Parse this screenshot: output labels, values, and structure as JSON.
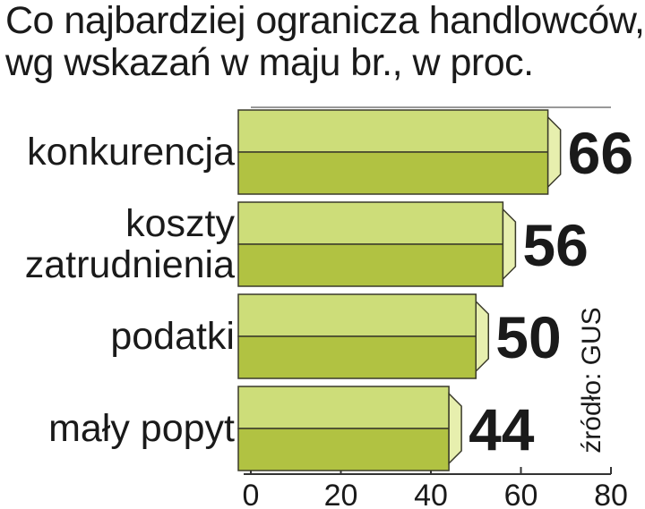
{
  "title_lines": [
    "Co najbardziej ogranicza handlowców,",
    "wg wskazań w maju br., w proc."
  ],
  "source": "źródło: GUS",
  "colors": {
    "bar_top": "#cddd79",
    "bar_bottom": "#b1c242",
    "bar_side": "#e7efae",
    "bar_outline": "#3a3a2a",
    "axis": "#333333",
    "text": "#1a1a1a"
  },
  "chart_data": {
    "type": "bar",
    "orientation": "horizontal",
    "categories": [
      [
        "konkurencja"
      ],
      [
        "koszty",
        "zatrudnienia"
      ],
      [
        "podatki"
      ],
      [
        "mały popyt"
      ]
    ],
    "values": [
      66,
      56,
      50,
      44
    ],
    "value_labels": [
      "66",
      "56",
      "50",
      "44"
    ],
    "xlim": [
      0,
      80
    ],
    "xticks": [
      "0",
      "20",
      "40",
      "60",
      "80"
    ],
    "grid": false,
    "legend": "none"
  }
}
